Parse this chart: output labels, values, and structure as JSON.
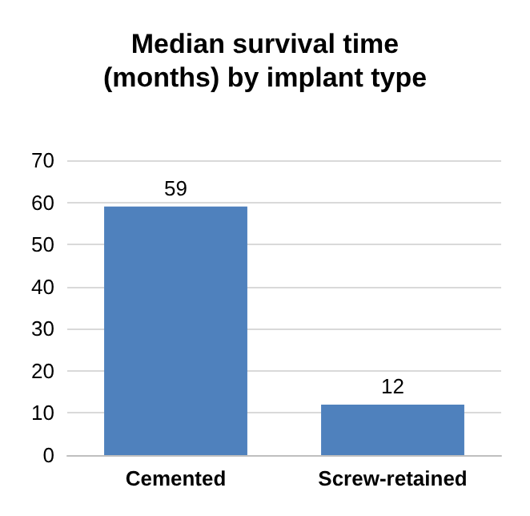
{
  "chart_data": {
    "type": "bar",
    "title": "Median survival time\n(months) by implant type",
    "categories": [
      "Cemented",
      "Screw-retained"
    ],
    "values": [
      59,
      12
    ],
    "color": "#4f81bd",
    "ylim": [
      0,
      70
    ],
    "yticks": [
      0,
      10,
      20,
      30,
      40,
      50,
      60,
      70
    ],
    "grid": "y",
    "data_labels": true
  }
}
